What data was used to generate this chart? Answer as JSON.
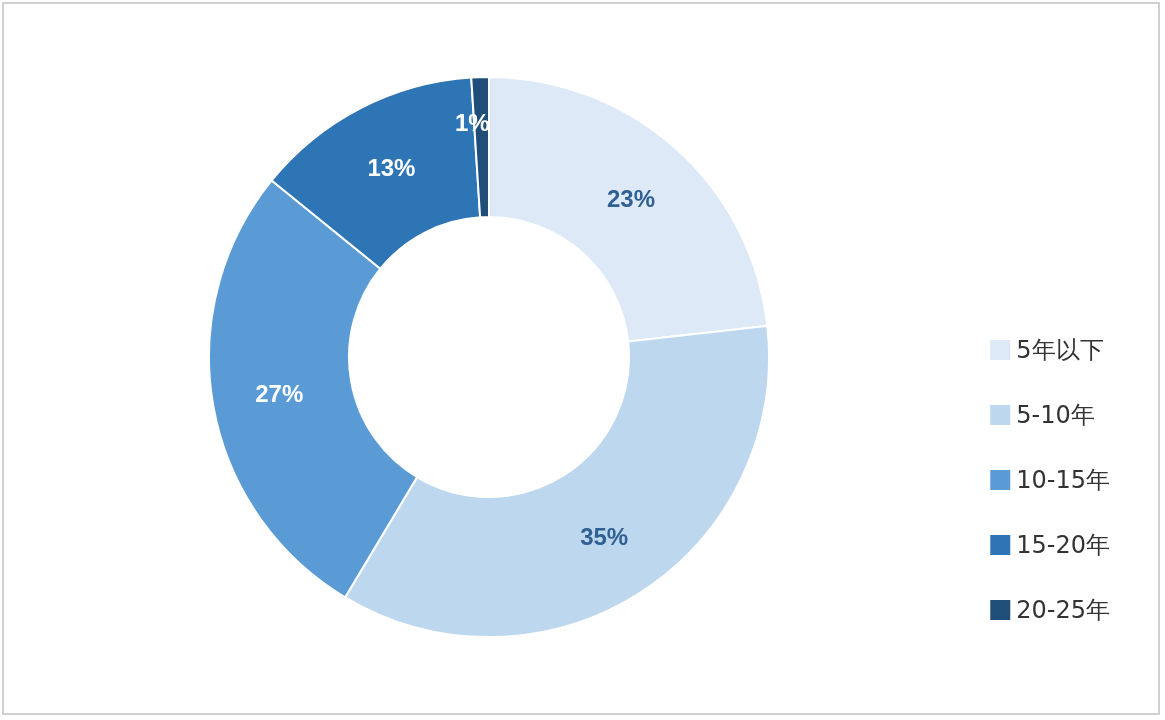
{
  "chart_data": {
    "type": "donut",
    "categories": [
      "5年以下",
      "5-10年",
      "10-15年",
      "15-20年",
      "20-25年"
    ],
    "values": [
      23,
      35,
      27,
      13,
      1
    ],
    "value_labels": [
      "23%",
      "35%",
      "27%",
      "13%",
      "1%"
    ],
    "colors": [
      "#dde9f6",
      "#bdd7ee",
      "#5b9bd5",
      "#2e75b6",
      "#1f4e79"
    ],
    "legend": "right"
  }
}
